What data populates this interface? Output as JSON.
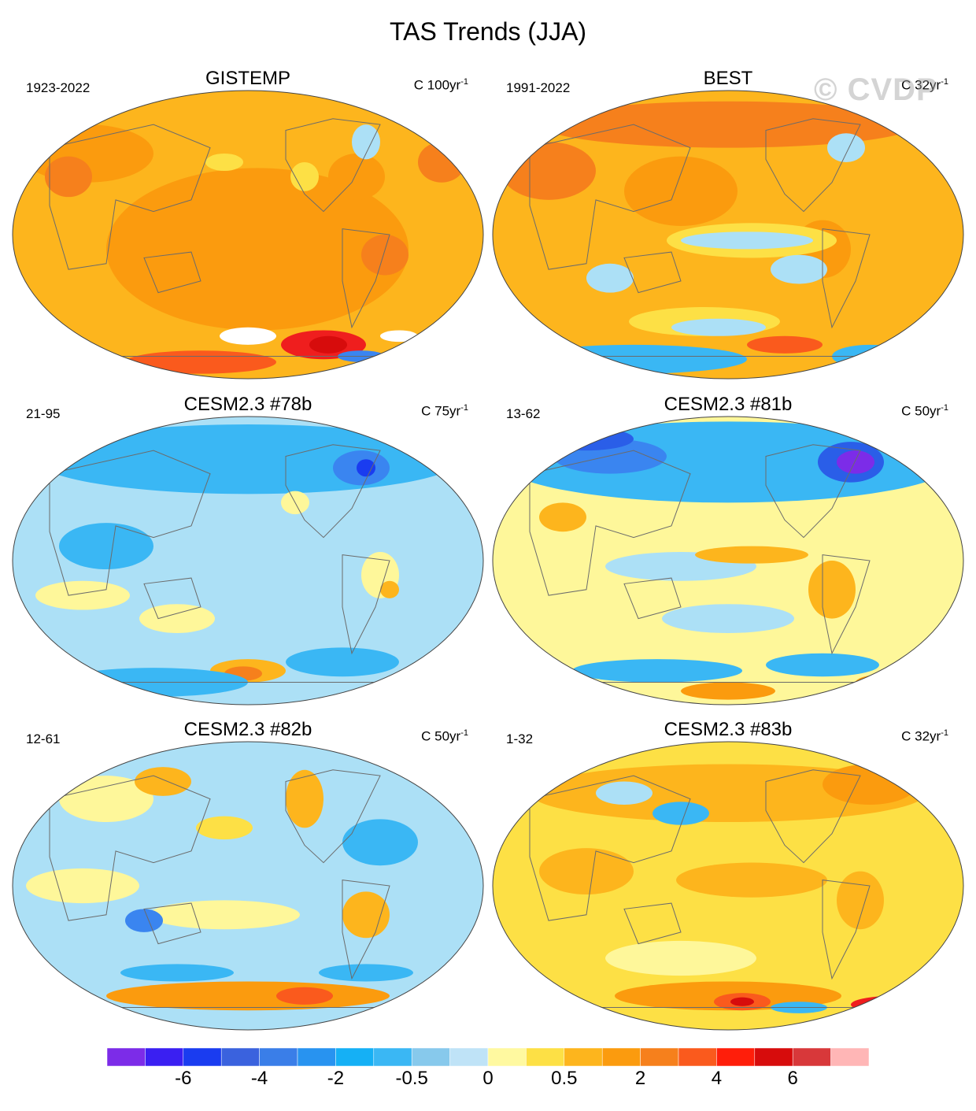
{
  "figure": {
    "title": "TAS Trends (JJA)",
    "watermark": "© CVDP"
  },
  "chart_data": {
    "type": "heatmap",
    "projection": "global map (Robinson-like, Pacific-centered)",
    "variable": "TAS",
    "season": "JJA",
    "panels": [
      {
        "id": "gistemp",
        "title": "GISTEMP",
        "period": "1923-2022",
        "units": "C 100yr",
        "units_exp": "-1",
        "background": "#fdb51d",
        "patches": [
          {
            "cx": 0.52,
            "cy": 0.55,
            "rx": 0.32,
            "ry": 0.28,
            "color": "#fb9b0e"
          },
          {
            "cx": 0.16,
            "cy": 0.22,
            "rx": 0.14,
            "ry": 0.1,
            "color": "#fb9b0e"
          },
          {
            "cx": 0.73,
            "cy": 0.3,
            "rx": 0.06,
            "ry": 0.08,
            "color": "#fb9b0e"
          },
          {
            "cx": 0.79,
            "cy": 0.57,
            "rx": 0.05,
            "ry": 0.07,
            "color": "#f6801c"
          },
          {
            "cx": 0.12,
            "cy": 0.3,
            "rx": 0.05,
            "ry": 0.07,
            "color": "#f6801c"
          },
          {
            "cx": 0.91,
            "cy": 0.25,
            "rx": 0.05,
            "ry": 0.07,
            "color": "#f6801c"
          },
          {
            "cx": 0.45,
            "cy": 0.25,
            "rx": 0.04,
            "ry": 0.03,
            "color": "#fde045"
          },
          {
            "cx": 0.62,
            "cy": 0.3,
            "rx": 0.03,
            "ry": 0.05,
            "color": "#fde045"
          },
          {
            "cx": 0.75,
            "cy": 0.18,
            "rx": 0.03,
            "ry": 0.06,
            "color": "#ace0f6"
          },
          {
            "cx": 0.66,
            "cy": 0.88,
            "rx": 0.09,
            "ry": 0.05,
            "color": "#ef1e1e"
          },
          {
            "cx": 0.67,
            "cy": 0.88,
            "rx": 0.04,
            "ry": 0.03,
            "color": "#d70c0c"
          },
          {
            "cx": 0.4,
            "cy": 0.94,
            "rx": 0.16,
            "ry": 0.04,
            "color": "#fa5a1d"
          },
          {
            "cx": 0.1,
            "cy": 0.94,
            "rx": 0.08,
            "ry": 0.04,
            "color": "#fa5a1d"
          },
          {
            "cx": 0.74,
            "cy": 0.92,
            "rx": 0.05,
            "ry": 0.02,
            "color": "#3a85f0"
          },
          {
            "cx": 0.5,
            "cy": 0.85,
            "rx": 0.06,
            "ry": 0.03,
            "color": "#ffffff"
          },
          {
            "cx": 0.82,
            "cy": 0.85,
            "rx": 0.04,
            "ry": 0.02,
            "color": "#ffffff"
          }
        ]
      },
      {
        "id": "best",
        "title": "BEST",
        "period": "1991-2022",
        "units": "C 32yr",
        "units_exp": "-1",
        "background": "#fdb51d",
        "patches": [
          {
            "cx": 0.5,
            "cy": 0.12,
            "rx": 0.4,
            "ry": 0.08,
            "color": "#f6801c"
          },
          {
            "cx": 0.12,
            "cy": 0.28,
            "rx": 0.1,
            "ry": 0.1,
            "color": "#f6801c"
          },
          {
            "cx": 0.4,
            "cy": 0.35,
            "rx": 0.12,
            "ry": 0.12,
            "color": "#fb9b0e"
          },
          {
            "cx": 0.7,
            "cy": 0.55,
            "rx": 0.06,
            "ry": 0.1,
            "color": "#fb9b0e"
          },
          {
            "cx": 0.55,
            "cy": 0.52,
            "rx": 0.18,
            "ry": 0.06,
            "color": "#fde045"
          },
          {
            "cx": 0.54,
            "cy": 0.52,
            "rx": 0.14,
            "ry": 0.03,
            "color": "#ace0f6"
          },
          {
            "cx": 0.65,
            "cy": 0.62,
            "rx": 0.06,
            "ry": 0.05,
            "color": "#ace0f6"
          },
          {
            "cx": 0.25,
            "cy": 0.65,
            "rx": 0.05,
            "ry": 0.05,
            "color": "#ace0f6"
          },
          {
            "cx": 0.45,
            "cy": 0.8,
            "rx": 0.16,
            "ry": 0.05,
            "color": "#fde045"
          },
          {
            "cx": 0.48,
            "cy": 0.82,
            "rx": 0.1,
            "ry": 0.03,
            "color": "#ace0f6"
          },
          {
            "cx": 0.3,
            "cy": 0.93,
            "rx": 0.24,
            "ry": 0.05,
            "color": "#3ab7f4"
          },
          {
            "cx": 0.62,
            "cy": 0.88,
            "rx": 0.08,
            "ry": 0.03,
            "color": "#fa5a1d"
          },
          {
            "cx": 0.8,
            "cy": 0.92,
            "rx": 0.08,
            "ry": 0.04,
            "color": "#3ab7f4"
          },
          {
            "cx": 0.75,
            "cy": 0.2,
            "rx": 0.04,
            "ry": 0.05,
            "color": "#ace0f6"
          }
        ]
      },
      {
        "id": "cesm78b",
        "title": "CESM2.3 #78b",
        "period": "21-95",
        "units": "C 75yr",
        "units_exp": "-1",
        "background": "#ace0f6",
        "patches": [
          {
            "cx": 0.5,
            "cy": 0.15,
            "rx": 0.45,
            "ry": 0.12,
            "color": "#3ab7f4"
          },
          {
            "cx": 0.74,
            "cy": 0.18,
            "rx": 0.06,
            "ry": 0.06,
            "color": "#3a85f0"
          },
          {
            "cx": 0.75,
            "cy": 0.18,
            "rx": 0.02,
            "ry": 0.03,
            "color": "#1a3cf0"
          },
          {
            "cx": 0.2,
            "cy": 0.45,
            "rx": 0.1,
            "ry": 0.08,
            "color": "#3ab7f4"
          },
          {
            "cx": 0.15,
            "cy": 0.62,
            "rx": 0.1,
            "ry": 0.05,
            "color": "#fef79a"
          },
          {
            "cx": 0.35,
            "cy": 0.7,
            "rx": 0.08,
            "ry": 0.05,
            "color": "#fef79a"
          },
          {
            "cx": 0.78,
            "cy": 0.55,
            "rx": 0.04,
            "ry": 0.08,
            "color": "#fef79a"
          },
          {
            "cx": 0.8,
            "cy": 0.6,
            "rx": 0.02,
            "ry": 0.03,
            "color": "#fdb51d"
          },
          {
            "cx": 0.5,
            "cy": 0.88,
            "rx": 0.08,
            "ry": 0.04,
            "color": "#fdb51d"
          },
          {
            "cx": 0.49,
            "cy": 0.89,
            "rx": 0.04,
            "ry": 0.025,
            "color": "#f6801c"
          },
          {
            "cx": 0.3,
            "cy": 0.92,
            "rx": 0.2,
            "ry": 0.05,
            "color": "#3ab7f4"
          },
          {
            "cx": 0.7,
            "cy": 0.85,
            "rx": 0.12,
            "ry": 0.05,
            "color": "#3ab7f4"
          },
          {
            "cx": 0.6,
            "cy": 0.3,
            "rx": 0.03,
            "ry": 0.04,
            "color": "#fef79a"
          }
        ]
      },
      {
        "id": "cesm81b",
        "title": "CESM2.3 #81b",
        "period": "13-62",
        "units": "C 50yr",
        "units_exp": "-1",
        "background": "#fef79a",
        "patches": [
          {
            "cx": 0.5,
            "cy": 0.16,
            "rx": 0.48,
            "ry": 0.14,
            "color": "#3ab7f4"
          },
          {
            "cx": 0.25,
            "cy": 0.14,
            "rx": 0.12,
            "ry": 0.06,
            "color": "#3a85f0"
          },
          {
            "cx": 0.76,
            "cy": 0.16,
            "rx": 0.07,
            "ry": 0.07,
            "color": "#2a5ee8"
          },
          {
            "cx": 0.77,
            "cy": 0.16,
            "rx": 0.04,
            "ry": 0.04,
            "color": "#7c2ce8"
          },
          {
            "cx": 0.2,
            "cy": 0.08,
            "rx": 0.1,
            "ry": 0.04,
            "color": "#2a5ee8"
          },
          {
            "cx": 0.4,
            "cy": 0.52,
            "rx": 0.16,
            "ry": 0.05,
            "color": "#ace0f6"
          },
          {
            "cx": 0.55,
            "cy": 0.48,
            "rx": 0.12,
            "ry": 0.03,
            "color": "#fdb51d"
          },
          {
            "cx": 0.15,
            "cy": 0.35,
            "rx": 0.05,
            "ry": 0.05,
            "color": "#fdb51d"
          },
          {
            "cx": 0.72,
            "cy": 0.6,
            "rx": 0.05,
            "ry": 0.1,
            "color": "#fdb51d"
          },
          {
            "cx": 0.5,
            "cy": 0.7,
            "rx": 0.14,
            "ry": 0.05,
            "color": "#ace0f6"
          },
          {
            "cx": 0.35,
            "cy": 0.88,
            "rx": 0.18,
            "ry": 0.04,
            "color": "#3ab7f4"
          },
          {
            "cx": 0.7,
            "cy": 0.86,
            "rx": 0.12,
            "ry": 0.04,
            "color": "#3ab7f4"
          },
          {
            "cx": 0.85,
            "cy": 0.92,
            "rx": 0.08,
            "ry": 0.03,
            "color": "#fb9b0e"
          },
          {
            "cx": 0.5,
            "cy": 0.95,
            "rx": 0.1,
            "ry": 0.03,
            "color": "#fb9b0e"
          }
        ]
      },
      {
        "id": "cesm82b",
        "title": "CESM2.3 #82b",
        "period": "12-61",
        "units": "C 50yr",
        "units_exp": "-1",
        "background": "#ace0f6",
        "patches": [
          {
            "cx": 0.2,
            "cy": 0.2,
            "rx": 0.1,
            "ry": 0.08,
            "color": "#fef79a"
          },
          {
            "cx": 0.32,
            "cy": 0.14,
            "rx": 0.06,
            "ry": 0.05,
            "color": "#fdb51d"
          },
          {
            "cx": 0.45,
            "cy": 0.3,
            "rx": 0.06,
            "ry": 0.04,
            "color": "#fde045"
          },
          {
            "cx": 0.62,
            "cy": 0.2,
            "rx": 0.04,
            "ry": 0.1,
            "color": "#fdb51d"
          },
          {
            "cx": 0.78,
            "cy": 0.35,
            "rx": 0.08,
            "ry": 0.08,
            "color": "#3ab7f4"
          },
          {
            "cx": 0.15,
            "cy": 0.5,
            "rx": 0.12,
            "ry": 0.06,
            "color": "#fef79a"
          },
          {
            "cx": 0.45,
            "cy": 0.6,
            "rx": 0.16,
            "ry": 0.05,
            "color": "#fef79a"
          },
          {
            "cx": 0.75,
            "cy": 0.6,
            "rx": 0.05,
            "ry": 0.08,
            "color": "#fdb51d"
          },
          {
            "cx": 0.5,
            "cy": 0.88,
            "rx": 0.3,
            "ry": 0.05,
            "color": "#fb9b0e"
          },
          {
            "cx": 0.62,
            "cy": 0.88,
            "rx": 0.06,
            "ry": 0.03,
            "color": "#fa5a1d"
          },
          {
            "cx": 0.35,
            "cy": 0.8,
            "rx": 0.12,
            "ry": 0.03,
            "color": "#3ab7f4"
          },
          {
            "cx": 0.75,
            "cy": 0.8,
            "rx": 0.1,
            "ry": 0.03,
            "color": "#3ab7f4"
          },
          {
            "cx": 0.28,
            "cy": 0.62,
            "rx": 0.04,
            "ry": 0.04,
            "color": "#3a85f0"
          }
        ]
      },
      {
        "id": "cesm83b",
        "title": "CESM2.3 #83b",
        "period": "1-32",
        "units": "C 32yr",
        "units_exp": "-1",
        "background": "#fde045",
        "patches": [
          {
            "cx": 0.5,
            "cy": 0.18,
            "rx": 0.42,
            "ry": 0.1,
            "color": "#fdb51d"
          },
          {
            "cx": 0.8,
            "cy": 0.15,
            "rx": 0.1,
            "ry": 0.07,
            "color": "#fb9b0e"
          },
          {
            "cx": 0.4,
            "cy": 0.25,
            "rx": 0.06,
            "ry": 0.04,
            "color": "#3ab7f4"
          },
          {
            "cx": 0.28,
            "cy": 0.18,
            "rx": 0.06,
            "ry": 0.04,
            "color": "#ace0f6"
          },
          {
            "cx": 0.55,
            "cy": 0.48,
            "rx": 0.16,
            "ry": 0.06,
            "color": "#fdb51d"
          },
          {
            "cx": 0.2,
            "cy": 0.45,
            "rx": 0.1,
            "ry": 0.08,
            "color": "#fdb51d"
          },
          {
            "cx": 0.78,
            "cy": 0.55,
            "rx": 0.05,
            "ry": 0.1,
            "color": "#fdb51d"
          },
          {
            "cx": 0.4,
            "cy": 0.75,
            "rx": 0.16,
            "ry": 0.06,
            "color": "#fef79a"
          },
          {
            "cx": 0.5,
            "cy": 0.88,
            "rx": 0.24,
            "ry": 0.05,
            "color": "#fb9b0e"
          },
          {
            "cx": 0.53,
            "cy": 0.9,
            "rx": 0.06,
            "ry": 0.03,
            "color": "#fa5a1d"
          },
          {
            "cx": 0.53,
            "cy": 0.9,
            "rx": 0.025,
            "ry": 0.015,
            "color": "#d70c0c"
          },
          {
            "cx": 0.85,
            "cy": 0.91,
            "rx": 0.09,
            "ry": 0.03,
            "color": "#ef1e1e"
          },
          {
            "cx": 0.15,
            "cy": 0.93,
            "rx": 0.08,
            "ry": 0.03,
            "color": "#fa5a1d"
          },
          {
            "cx": 0.65,
            "cy": 0.92,
            "rx": 0.06,
            "ry": 0.02,
            "color": "#3ab7f4"
          }
        ]
      }
    ],
    "colorbar": {
      "colors": [
        "#7c2ce8",
        "#3a1ff2",
        "#1a3cf0",
        "#3a62de",
        "#3a7ee8",
        "#2893f0",
        "#15b0f5",
        "#3ab7f4",
        "#87c9ec",
        "#bfe3f7",
        "#fff9a0",
        "#fde045",
        "#fdb51d",
        "#fb9b0e",
        "#f6801c",
        "#fa5a1d",
        "#ff1e0a",
        "#d70c0c",
        "#d8383a",
        "#ffb6b6"
      ],
      "tick_labels": [
        {
          "label": "-6",
          "boundary": 2
        },
        {
          "label": "-4",
          "boundary": 4
        },
        {
          "label": "-2",
          "boundary": 6
        },
        {
          "label": "-0.5",
          "boundary": 8
        },
        {
          "label": "0",
          "boundary": 10
        },
        {
          "label": "0.5",
          "boundary": 12
        },
        {
          "label": "2",
          "boundary": 14
        },
        {
          "label": "4",
          "boundary": 16
        },
        {
          "label": "6",
          "boundary": 18
        }
      ]
    }
  }
}
